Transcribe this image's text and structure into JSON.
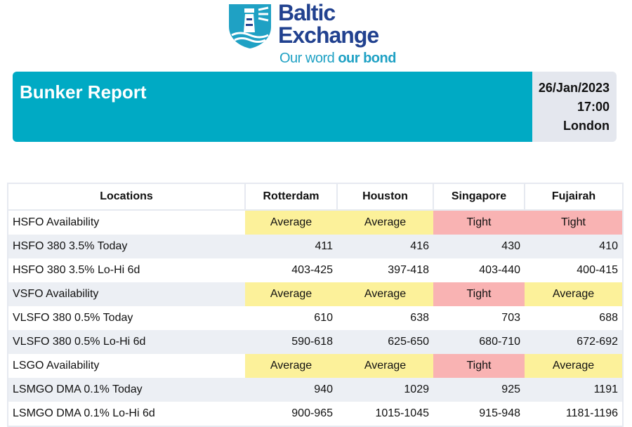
{
  "logo": {
    "line1": "Baltic",
    "line2": "Exchange",
    "tagline_regular": "Our word ",
    "tagline_bold": "our bond",
    "colors": {
      "navy": "#21418f",
      "cyan": "#1fa1c4"
    }
  },
  "header": {
    "title": "Bunker Report",
    "date": "26/Jan/2023",
    "time": "17:00",
    "location": "London",
    "colors": {
      "banner": "#00aac4",
      "side": "#e4e7ee"
    }
  },
  "table": {
    "columns": [
      "Locations",
      "Rotterdam",
      "Houston",
      "Singapore",
      "Fujairah"
    ],
    "rows": [
      {
        "label": "HSFO Availability",
        "kind": "availability",
        "values": [
          "Average",
          "Average",
          "Tight",
          "Tight"
        ]
      },
      {
        "label": "HSFO 380 3.5% Today",
        "kind": "number",
        "values": [
          "411",
          "416",
          "430",
          "410"
        ]
      },
      {
        "label": "HSFO 380 3.5% Lo-Hi 6d",
        "kind": "number",
        "values": [
          "403-425",
          "397-418",
          "403-440",
          "400-415"
        ]
      },
      {
        "label": "VSFO Availability",
        "kind": "availability",
        "values": [
          "Average",
          "Average",
          "Tight",
          "Average"
        ]
      },
      {
        "label": "VLSFO 380 0.5% Today",
        "kind": "number",
        "values": [
          "610",
          "638",
          "703",
          "688"
        ]
      },
      {
        "label": "VLSFO 380 0.5% Lo-Hi 6d",
        "kind": "number",
        "values": [
          "590-618",
          "625-650",
          "680-710",
          "672-692"
        ]
      },
      {
        "label": "LSGO Availability",
        "kind": "availability",
        "values": [
          "Average",
          "Average",
          "Tight",
          "Average"
        ]
      },
      {
        "label": "LSMGO DMA 0.1% Today",
        "kind": "number",
        "values": [
          "940",
          "1029",
          "925",
          "1191"
        ]
      },
      {
        "label": "LSMGO DMA 0.1% Lo-Hi 6d",
        "kind": "number",
        "values": [
          "900-965",
          "1015-1045",
          "915-948",
          "1181-1196"
        ]
      }
    ],
    "colors": {
      "average": "#fcf19a",
      "tight": "#f9b3b3",
      "row_alt": "#eceff4"
    }
  }
}
